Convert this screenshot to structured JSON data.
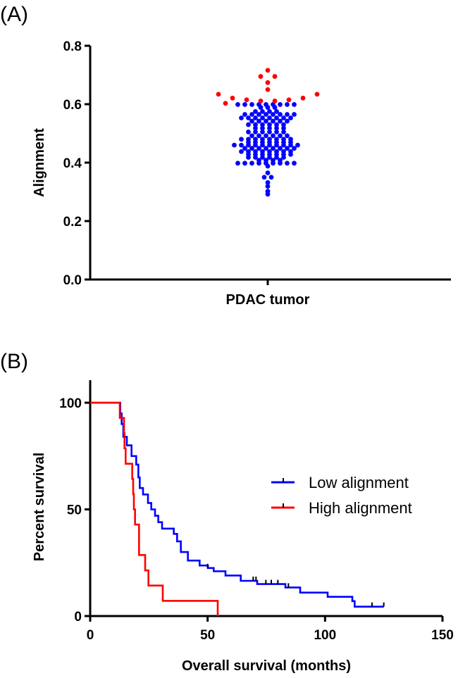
{
  "chart_data": [
    {
      "type": "scatter",
      "panel_label": "(A)",
      "title": "",
      "xlabel": "PDAC tumor",
      "ylabel": "Alignment",
      "ylim": [
        0,
        0.8
      ],
      "yticks": [
        "0.0",
        "0.2",
        "0.4",
        "0.6",
        "0.8"
      ],
      "categories": [
        "PDAC tumor"
      ],
      "series": [
        {
          "name": "High alignment",
          "color": "#ff0000",
          "values": [
            0.716,
            0.695,
            0.695,
            0.674,
            0.65,
            0.634,
            0.634,
            0.621,
            0.621,
            0.615,
            0.615,
            0.611,
            0.611,
            0.603
          ]
        },
        {
          "name": "Low alignment",
          "color": "#0000ff",
          "rows": [
            [
              0.599,
              9
            ],
            [
              0.589,
              3
            ],
            [
              0.575,
              4
            ],
            [
              0.565,
              8
            ],
            [
              0.553,
              8
            ],
            [
              0.542,
              6
            ],
            [
              0.53,
              6
            ],
            [
              0.518,
              5
            ],
            [
              0.505,
              6
            ],
            [
              0.492,
              6
            ],
            [
              0.48,
              8
            ],
            [
              0.47,
              7
            ],
            [
              0.46,
              10
            ],
            [
              0.449,
              8
            ],
            [
              0.438,
              8
            ],
            [
              0.428,
              7
            ],
            [
              0.418,
              6
            ],
            [
              0.408,
              4
            ],
            [
              0.398,
              9
            ],
            [
              0.388,
              1
            ],
            [
              0.365,
              1
            ],
            [
              0.35,
              2
            ],
            [
              0.332,
              1
            ],
            [
              0.319,
              1
            ],
            [
              0.302,
              1
            ],
            [
              0.292,
              1
            ]
          ]
        }
      ]
    },
    {
      "type": "line",
      "panel_label": "(B)",
      "xlabel": "Overall survival (months)",
      "ylabel": "Percent survival",
      "xlim": [
        0,
        150
      ],
      "ylim": [
        0,
        100
      ],
      "xticks": [
        "0",
        "50",
        "100",
        "150"
      ],
      "yticks": [
        "0",
        "50",
        "100"
      ],
      "legend_position": "right",
      "series": [
        {
          "name": "Low alignment",
          "color": "#0000ff",
          "steps": [
            [
              0,
              100
            ],
            [
              12.6,
              100
            ],
            [
              12.8,
              95
            ],
            [
              13.4,
              90
            ],
            [
              14.1,
              84
            ],
            [
              15.6,
              80
            ],
            [
              17.6,
              75
            ],
            [
              19.6,
              71
            ],
            [
              20.5,
              65
            ],
            [
              21.1,
              60
            ],
            [
              22.5,
              57
            ],
            [
              24.6,
              53
            ],
            [
              26,
              50
            ],
            [
              27.6,
              47
            ],
            [
              29,
              44
            ],
            [
              30.6,
              41
            ],
            [
              35.6,
              38.5
            ],
            [
              37,
              35
            ],
            [
              38.6,
              30
            ],
            [
              41.6,
              26
            ],
            [
              46.6,
              23.7
            ],
            [
              50.1,
              22.5
            ],
            [
              52.6,
              21
            ],
            [
              57.6,
              19
            ],
            [
              64.1,
              16.5
            ],
            [
              71.1,
              15
            ],
            [
              83.1,
              13.4
            ],
            [
              89.4,
              11
            ],
            [
              101.1,
              9
            ],
            [
              111.6,
              7
            ],
            [
              112.6,
              4.4
            ],
            [
              125,
              4.4
            ]
          ],
          "censored": [
            [
              50,
              22.5
            ],
            [
              69.4,
              16.5
            ],
            [
              70.6,
              16.5
            ],
            [
              74.8,
              15
            ],
            [
              77.1,
              15
            ],
            [
              79.9,
              15
            ],
            [
              84.4,
              13.4
            ],
            [
              120,
              4.4
            ],
            [
              125,
              4.4
            ]
          ]
        },
        {
          "name": "High alignment",
          "color": "#ff0000",
          "steps": [
            [
              0,
              100
            ],
            [
              12.6,
              100
            ],
            [
              12.6,
              92.9
            ],
            [
              14.4,
              85.7
            ],
            [
              14.6,
              78.6
            ],
            [
              15.1,
              71.4
            ],
            [
              17.9,
              64.3
            ],
            [
              18.3,
              57.1
            ],
            [
              18.6,
              50
            ],
            [
              19.1,
              42.9
            ],
            [
              20.8,
              28.6
            ],
            [
              23.4,
              21.4
            ],
            [
              24.8,
              14.3
            ],
            [
              30.9,
              7.1
            ],
            [
              54.3,
              0
            ]
          ],
          "censored": []
        }
      ]
    }
  ]
}
